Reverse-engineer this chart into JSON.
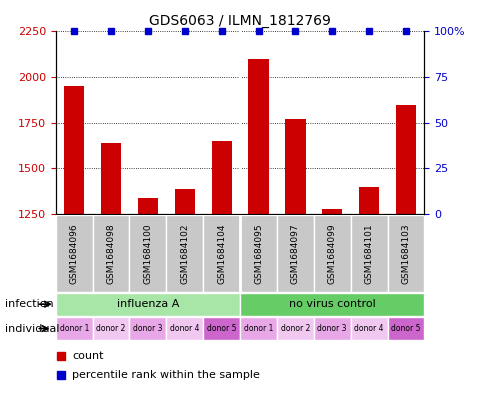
{
  "title": "GDS6063 / ILMN_1812769",
  "samples": [
    "GSM1684096",
    "GSM1684098",
    "GSM1684100",
    "GSM1684102",
    "GSM1684104",
    "GSM1684095",
    "GSM1684097",
    "GSM1684099",
    "GSM1684101",
    "GSM1684103"
  ],
  "counts": [
    1950,
    1640,
    1340,
    1390,
    1650,
    2100,
    1770,
    1280,
    1400,
    1850
  ],
  "percentiles": [
    100,
    100,
    100,
    100,
    100,
    100,
    100,
    100,
    100,
    100
  ],
  "ylim_left": [
    1250,
    2250
  ],
  "ylim_right": [
    0,
    100
  ],
  "yticks_left": [
    1250,
    1500,
    1750,
    2000,
    2250
  ],
  "yticks_right": [
    0,
    25,
    50,
    75,
    100
  ],
  "ytick_labels_right": [
    "0",
    "25",
    "50",
    "75",
    "100%"
  ],
  "infection_groups": [
    {
      "label": "influenza A",
      "start": 0,
      "end": 5,
      "color": "#a8e6a8"
    },
    {
      "label": "no virus control",
      "start": 5,
      "end": 10,
      "color": "#66cc66"
    }
  ],
  "individual_labels": [
    "donor 1",
    "donor 2",
    "donor 3",
    "donor 4",
    "donor 5",
    "donor 1",
    "donor 2",
    "donor 3",
    "donor 4",
    "donor 5"
  ],
  "ind_colors_alt": [
    "#e8a8e8",
    "#f0c8f0",
    "#e8a8e8",
    "#f0c8f0",
    "#cc66cc",
    "#e8a8e8",
    "#f0c8f0",
    "#e8a8e8",
    "#f0c8f0",
    "#cc66cc"
  ],
  "bar_color": "#cc0000",
  "dot_color": "#0000cc",
  "bar_width": 0.55,
  "background_color": "#ffffff",
  "plot_bg_color": "#ffffff",
  "sample_box_color": "#c8c8c8",
  "legend_count_color": "#cc0000",
  "legend_percentile_color": "#0000cc"
}
